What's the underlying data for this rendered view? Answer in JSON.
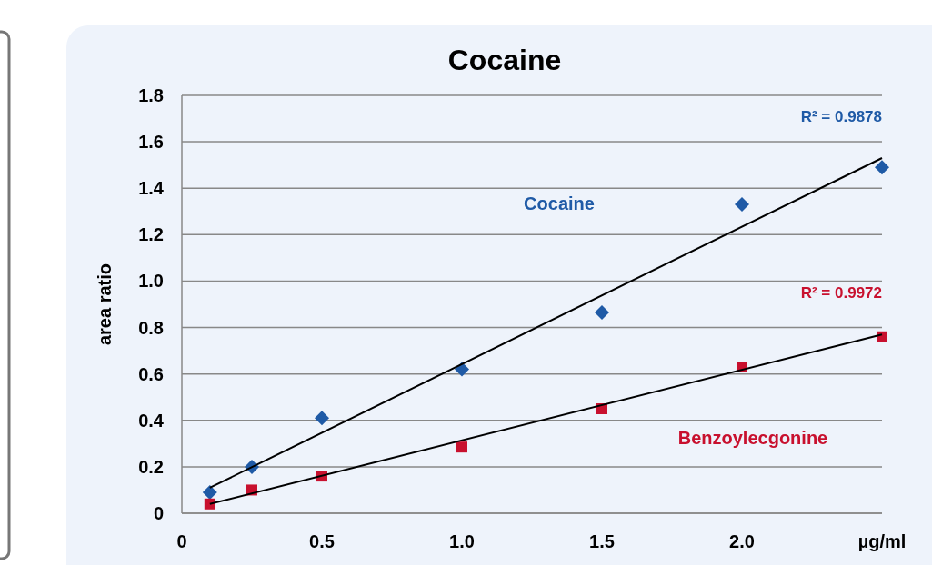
{
  "chart_data": {
    "type": "scatter",
    "title": "Cocaine",
    "ylabel": "area ratio",
    "xlim": [
      0,
      2.5
    ],
    "xticks": [
      0,
      0.5,
      {
        "value": 1,
        "label": "1.0"
      },
      1.5,
      {
        "value": 2,
        "label": "2.0"
      },
      {
        "value": 2.5,
        "label": "µg/ml"
      }
    ],
    "ylim": [
      0,
      1.8
    ],
    "yticks": [
      0,
      0.2,
      0.4,
      0.6,
      0.8,
      {
        "value": 1,
        "label": "1.0"
      },
      1.2,
      1.4,
      1.6,
      1.8
    ],
    "grid": "y",
    "series": [
      {
        "name": "Cocaine",
        "marker": "diamond",
        "color": "#1f5aa6",
        "x": [
          0.1,
          0.25,
          0.5,
          1,
          1.5,
          2,
          2.5
        ],
        "values": [
          0.09,
          0.2,
          0.41,
          0.62,
          0.865,
          1.33,
          1.49
        ]
      },
      {
        "name": "Benzoylecgonine",
        "marker": "square",
        "color": "#c8102e",
        "x": [
          0.1,
          0.25,
          0.5,
          1,
          1.5,
          2,
          2.5
        ],
        "values": [
          0.04,
          0.1,
          0.16,
          0.285,
          0.45,
          0.63,
          0.76
        ]
      },
      {
        "type": "line",
        "marker": "none",
        "color": "#000000",
        "x": [
          0.1,
          2.5
        ],
        "values": [
          0.11,
          1.53
        ]
      },
      {
        "type": "line",
        "marker": "none",
        "color": "#000000",
        "x": [
          0.1,
          2.5
        ],
        "values": [
          0.04,
          0.77
        ]
      }
    ],
    "annotations": [
      {
        "text": "R² = 0.9878",
        "x": 2.5,
        "y": 1.53
      },
      {
        "text": "R² = 0.9972",
        "x": 2.5,
        "y": 0.77
      }
    ]
  }
}
